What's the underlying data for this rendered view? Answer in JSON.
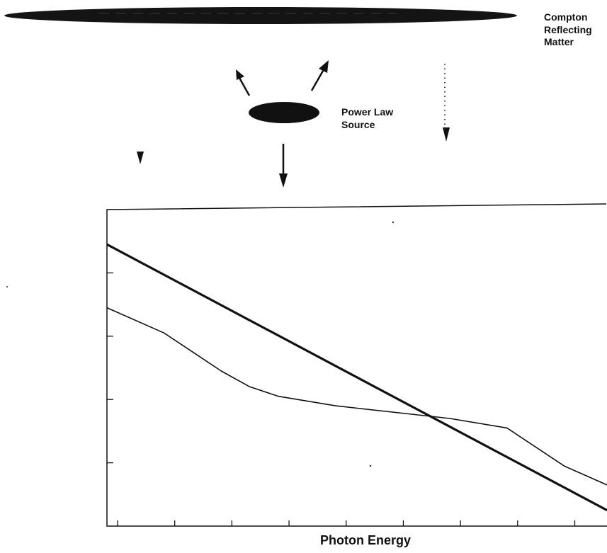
{
  "labels": {
    "reflector_line1": "Compton",
    "reflector_line2": "Reflecting",
    "reflector_line3": "Matter",
    "source_line1": "Power Law",
    "source_line2": "Source",
    "x_axis": "Photon Energy"
  },
  "chart_data": {
    "type": "line",
    "xlabel": "Photon Energy",
    "ylabel": "",
    "title": "",
    "xlim": [
      0,
      8.75
    ],
    "ylim": [
      0,
      5
    ],
    "grid": false,
    "series": [
      {
        "style": "thick",
        "x": [
          0,
          8.75
        ],
        "y": [
          4.45,
          0.25
        ]
      },
      {
        "style": "thin",
        "x": [
          0,
          1,
          2,
          2.5,
          3,
          4,
          5.5,
          6,
          7,
          8,
          8.75
        ],
        "y": [
          3.45,
          3.05,
          2.45,
          2.2,
          2.05,
          1.9,
          1.75,
          1.7,
          1.55,
          0.95,
          0.65
        ]
      }
    ]
  },
  "colors": {
    "ink": "#111111",
    "background": "#ffffff"
  }
}
